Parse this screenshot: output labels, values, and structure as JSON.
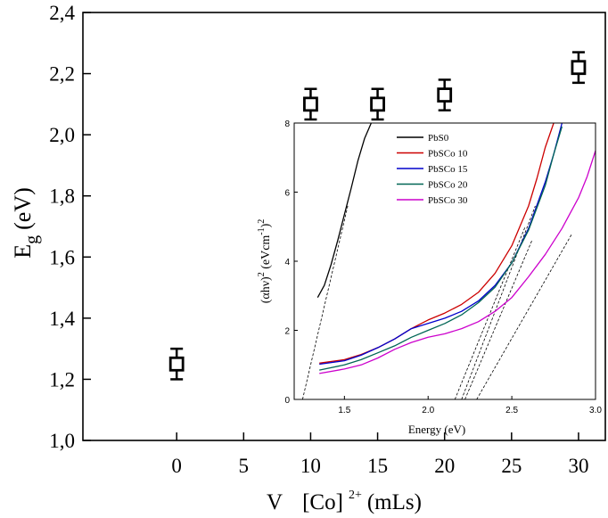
{
  "chart_data": [
    {
      "type": "scatter",
      "name": "main",
      "xlabel_parts": {
        "v": "V",
        "species": "[Co]",
        "charge": "2+",
        "unit": "(mLs)"
      },
      "ylabel_parts": {
        "e": "E",
        "sub": "g",
        "unit": "(eV)"
      },
      "xlim": [
        -7,
        32
      ],
      "ylim": [
        1.0,
        2.4
      ],
      "xticks": [
        0,
        5,
        10,
        15,
        20,
        25,
        30
      ],
      "xtick_labels": [
        "0",
        "5",
        "10",
        "15",
        "20",
        "25",
        "30"
      ],
      "yticks": [
        1.0,
        1.2,
        1.4,
        1.6,
        1.8,
        2.0,
        2.2,
        2.4
      ],
      "ytick_labels": [
        "1,0",
        "1,2",
        "1,4",
        "1,6",
        "1,8",
        "2,0",
        "2,2",
        "2,4"
      ],
      "marker": "open-square",
      "points": [
        {
          "x": 0,
          "y": 1.25,
          "err": 0.05
        },
        {
          "x": 10,
          "y": 2.1,
          "err": 0.05
        },
        {
          "x": 15,
          "y": 2.1,
          "err": 0.05
        },
        {
          "x": 20,
          "y": 2.13,
          "err": 0.05
        },
        {
          "x": 30,
          "y": 2.22,
          "err": 0.05
        }
      ]
    },
    {
      "type": "line",
      "name": "inset",
      "xlabel": "Energy (eV)",
      "ylabel_parts": {
        "a": "(αhν)",
        "a_sup": "2",
        "b": " (eVcm",
        "b_sup": "-1",
        "c": ")",
        "c_sup": "2"
      },
      "xlim": [
        1.2,
        3.0
      ],
      "ylim": [
        0,
        8
      ],
      "xticks": [
        1.5,
        2.0,
        2.5,
        3.0
      ],
      "xtick_labels": [
        "1.5",
        "2.0",
        "2.5",
        "3.0"
      ],
      "yticks": [
        0,
        2,
        4,
        6,
        8
      ],
      "ytick_labels": [
        "0",
        "2",
        "4",
        "6",
        "8"
      ],
      "legend_position": "top-left",
      "series": [
        {
          "name": "PbS0",
          "color": "#000000",
          "x": [
            1.34,
            1.38,
            1.42,
            1.46,
            1.5,
            1.54,
            1.58,
            1.62,
            1.66
          ],
          "y": [
            2.95,
            3.3,
            3.9,
            4.6,
            5.35,
            6.1,
            6.9,
            7.55,
            8.0
          ]
        },
        {
          "name": "PbSCo 10",
          "color": "#cc0000",
          "x": [
            1.35,
            1.5,
            1.6,
            1.7,
            1.8,
            1.9,
            2.0,
            2.1,
            2.2,
            2.3,
            2.4,
            2.5,
            2.6,
            2.65,
            2.7,
            2.75
          ],
          "y": [
            1.05,
            1.15,
            1.3,
            1.5,
            1.75,
            2.05,
            2.3,
            2.5,
            2.75,
            3.1,
            3.65,
            4.45,
            5.6,
            6.4,
            7.3,
            8.0
          ]
        },
        {
          "name": "PbSCo 15",
          "color": "#0000cc",
          "x": [
            1.35,
            1.5,
            1.6,
            1.7,
            1.8,
            1.9,
            2.0,
            2.1,
            2.2,
            2.3,
            2.4,
            2.5,
            2.6,
            2.7,
            2.75,
            2.8
          ],
          "y": [
            1.02,
            1.12,
            1.28,
            1.5,
            1.75,
            2.05,
            2.2,
            2.35,
            2.55,
            2.85,
            3.3,
            3.95,
            4.95,
            6.3,
            7.1,
            8.0
          ]
        },
        {
          "name": "PbSCo 20",
          "color": "#006655",
          "x": [
            1.35,
            1.5,
            1.6,
            1.7,
            1.8,
            1.9,
            2.0,
            2.1,
            2.2,
            2.3,
            2.4,
            2.5,
            2.6,
            2.7,
            2.75,
            2.8
          ],
          "y": [
            0.85,
            1.0,
            1.15,
            1.35,
            1.55,
            1.8,
            2.0,
            2.2,
            2.45,
            2.8,
            3.25,
            3.95,
            4.9,
            6.2,
            7.1,
            7.9
          ]
        },
        {
          "name": "PbSCo 30",
          "color": "#cc00cc",
          "x": [
            1.35,
            1.5,
            1.6,
            1.7,
            1.8,
            1.9,
            2.0,
            2.1,
            2.2,
            2.3,
            2.4,
            2.5,
            2.6,
            2.7,
            2.8,
            2.9,
            2.95,
            3.0
          ],
          "y": [
            0.75,
            0.88,
            1.0,
            1.2,
            1.45,
            1.65,
            1.8,
            1.9,
            2.05,
            2.25,
            2.55,
            2.95,
            3.55,
            4.2,
            4.95,
            5.85,
            6.45,
            7.2
          ]
        }
      ],
      "tangents": [
        {
          "x": [
            1.25,
            1.52
          ],
          "y": [
            0,
            5.6
          ]
        },
        {
          "x": [
            2.16,
            2.58
          ],
          "y": [
            0,
            5.0
          ]
        },
        {
          "x": [
            2.2,
            2.64
          ],
          "y": [
            0,
            5.6
          ]
        },
        {
          "x": [
            2.22,
            2.62
          ],
          "y": [
            0,
            4.6
          ]
        },
        {
          "x": [
            2.29,
            2.86
          ],
          "y": [
            0,
            4.8
          ]
        }
      ]
    }
  ]
}
